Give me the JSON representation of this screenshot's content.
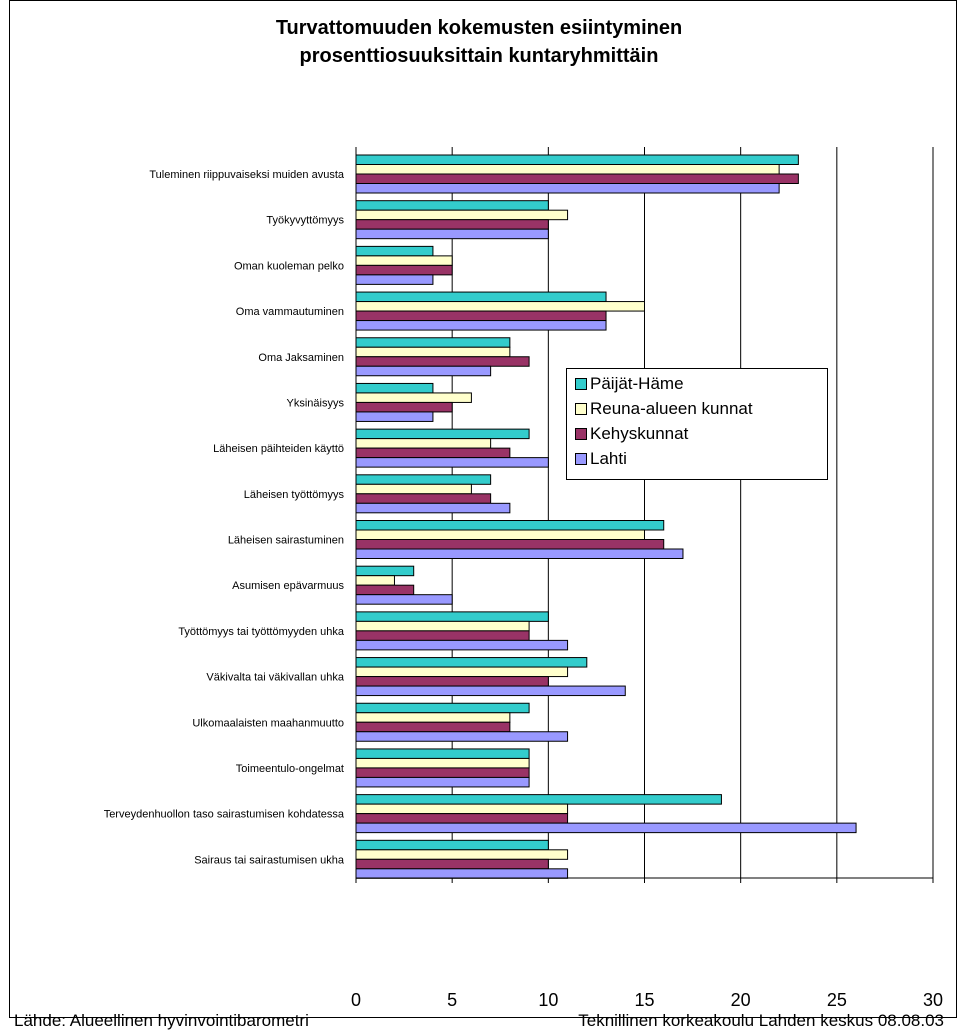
{
  "chart_data": {
    "type": "bar",
    "orientation": "horizontal",
    "title_lines": [
      "Turvattomuuden kokemusten esiintyminen",
      "prosenttiosuuksittain kuntaryhmittäin"
    ],
    "categories": [
      "Tuleminen riippuvaiseksi muiden avusta",
      "Työkyvyttömyys",
      "Oman kuoleman pelko",
      "Oma vammautuminen",
      "Oma Jaksaminen",
      "Yksinäisyys",
      "Läheisen päihteiden käyttö",
      "Läheisen työttömyys",
      "Läheisen sairastuminen",
      "Asumisen epävarmuus",
      "Työttömyys tai työttömyyden uhka",
      "Väkivalta tai väkivallan uhka",
      "Ulkomaalaisten maahanmuutto",
      "Toimeentulo-ongelmat",
      "Terveydenhuollon taso sairastumisen kohdatessa",
      "Sairaus tai sairastumisen ukha"
    ],
    "series": [
      {
        "name": "Päijät-Häme",
        "color": "#33CCCC",
        "values": [
          23,
          10,
          4,
          13,
          8,
          4,
          9,
          7,
          16,
          3,
          10,
          12,
          9,
          9,
          19,
          10
        ]
      },
      {
        "name": "Reuna-alueen kunnat",
        "color": "#FFFFCC",
        "values": [
          22,
          11,
          5,
          15,
          8,
          6,
          7,
          6,
          15,
          2,
          9,
          11,
          8,
          9,
          11,
          11
        ]
      },
      {
        "name": "Kehyskunnat",
        "color": "#993366",
        "values": [
          23,
          10,
          5,
          13,
          9,
          5,
          8,
          7,
          16,
          3,
          9,
          10,
          8,
          9,
          11,
          10
        ]
      },
      {
        "name": "Lahti",
        "color": "#9999FF",
        "values": [
          22,
          10,
          4,
          13,
          7,
          4,
          10,
          8,
          17,
          5,
          11,
          14,
          11,
          9,
          26,
          11
        ]
      }
    ],
    "xlim": [
      0,
      30
    ],
    "xticks": [
      "0",
      "5",
      "10",
      "15",
      "20",
      "25",
      "30"
    ],
    "grid": "vertical",
    "legend": "right"
  },
  "footer": {
    "source_left": "Lähde: Alueellinen hyvinvointibarometri",
    "source_right": "Teknillinen korkeakoulu Lahden keskus 08.08.03"
  }
}
